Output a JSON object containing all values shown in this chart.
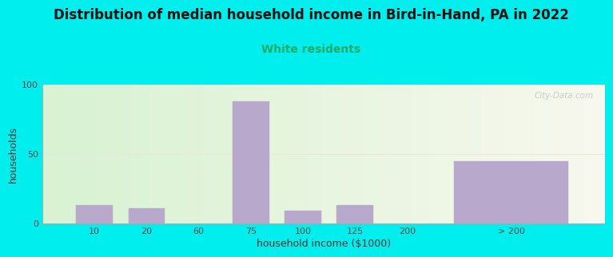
{
  "title": "Distribution of median household income in Bird-in-Hand, PA in 2022",
  "subtitle": "White residents",
  "xlabel": "household income ($1000)",
  "ylabel": "households",
  "bg_outer": "#00EEEE",
  "bg_inner_left": "#d8f2d2",
  "bg_inner_right": "#f8f8ee",
  "bar_color": "#b8a8cc",
  "categories": [
    "10",
    "20",
    "60",
    "75",
    "100",
    "125",
    "200",
    "> 200"
  ],
  "x_positions": [
    1,
    2,
    3,
    4,
    5,
    6,
    7,
    9
  ],
  "bar_widths": [
    0.7,
    0.7,
    0.7,
    0.7,
    0.7,
    0.7,
    0.7,
    2.2
  ],
  "values": [
    13,
    11,
    0,
    88,
    9,
    13,
    0,
    45
  ],
  "ylim": [
    0,
    100
  ],
  "yticks": [
    0,
    50,
    100
  ],
  "grid_color": "#e8e8d8",
  "title_fontsize": 12,
  "subtitle_fontsize": 10,
  "subtitle_color": "#22aa66",
  "axis_label_fontsize": 9,
  "tick_fontsize": 8,
  "watermark_text": "City-Data.com",
  "watermark_color": "#b8c8c8"
}
